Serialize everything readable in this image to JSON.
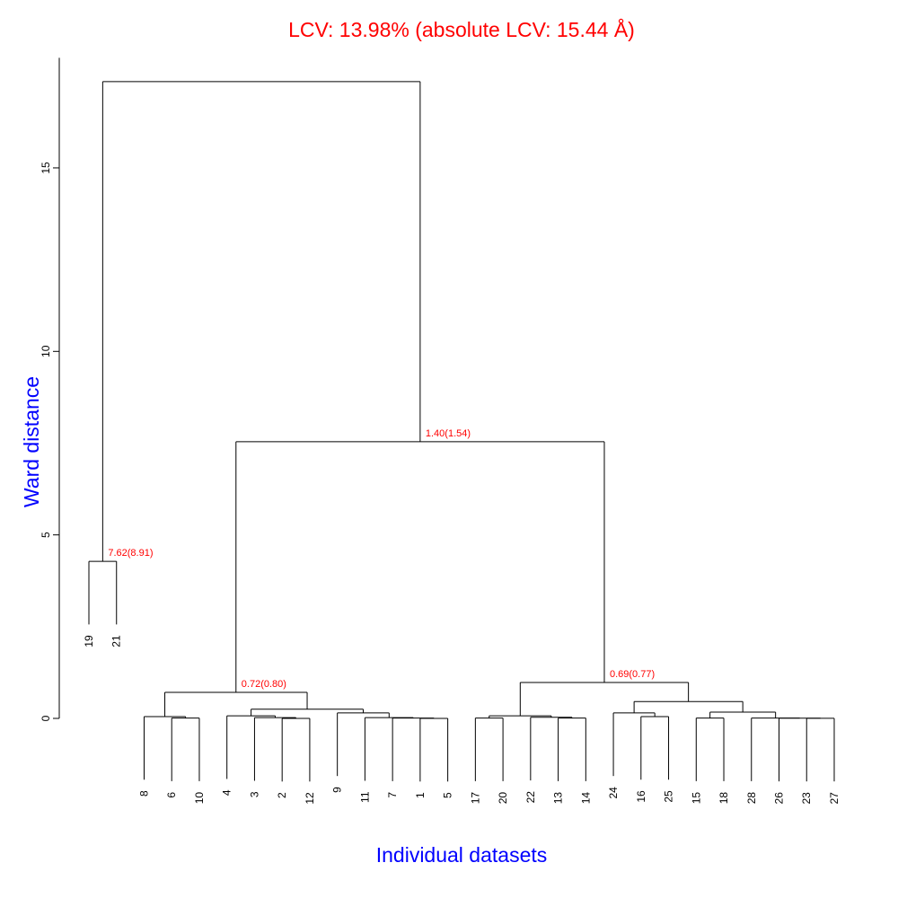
{
  "chart_data": {
    "type": "dendrogram",
    "title": "LCV: 13.98% (absolute LCV: 15.44 Å)",
    "xlabel": "Individual datasets",
    "ylabel": "Ward distance",
    "yticks": [
      0,
      5,
      10,
      15
    ],
    "ylim": [
      0,
      18
    ],
    "colors": {
      "title": "#ff0000",
      "axis_labels": "#0000ff",
      "annotations": "#ff0000",
      "lines": "#000000"
    },
    "tree": {
      "h": 17.35,
      "children": [
        {
          "h": 4.28,
          "label": "7.62(8.91)",
          "children": [
            "19",
            "21"
          ]
        },
        {
          "h": 7.54,
          "label": "1.40(1.54)",
          "children": [
            {
              "h": 0.71,
              "label": "0.72(0.80)",
              "children": [
                {
                  "h": 0.05,
                  "children": [
                    "8",
                    {
                      "h": 0.01,
                      "children": [
                        "6",
                        "10"
                      ]
                    }
                  ]
                },
                {
                  "h": 0.25,
                  "children": [
                    {
                      "h": 0.07,
                      "children": [
                        "4",
                        {
                          "h": 0.02,
                          "children": [
                            "3",
                            {
                              "h": 0.0,
                              "children": [
                                "2",
                                "12"
                              ]
                            }
                          ]
                        }
                      ]
                    },
                    {
                      "h": 0.15,
                      "children": [
                        "9",
                        {
                          "h": 0.02,
                          "children": [
                            "11",
                            {
                              "h": 0.01,
                              "children": [
                                "7",
                                {
                                  "h": 0.0,
                                  "children": [
                                    "1",
                                    "5"
                                  ]
                                }
                              ]
                            }
                          ]
                        }
                      ]
                    }
                  ]
                }
              ]
            },
            {
              "h": 0.98,
              "label": "0.69(0.77)",
              "children": [
                {
                  "h": 0.07,
                  "children": [
                    {
                      "h": 0.01,
                      "children": [
                        "17",
                        "20"
                      ]
                    },
                    {
                      "h": 0.03,
                      "children": [
                        "22",
                        {
                          "h": 0.01,
                          "children": [
                            "13",
                            "14"
                          ]
                        }
                      ]
                    }
                  ]
                },
                {
                  "h": 0.46,
                  "children": [
                    {
                      "h": 0.15,
                      "children": [
                        "24",
                        {
                          "h": 0.05,
                          "children": [
                            "16",
                            "25"
                          ]
                        }
                      ]
                    },
                    {
                      "h": 0.17,
                      "children": [
                        {
                          "h": 0.01,
                          "children": [
                            "15",
                            "18"
                          ]
                        },
                        {
                          "h": 0.01,
                          "children": [
                            "28",
                            {
                              "h": 0.005,
                              "children": [
                                "26",
                                {
                                  "h": 0.003,
                                  "children": [
                                    "23",
                                    "27"
                                  ]
                                }
                              ]
                            }
                          ]
                        }
                      ]
                    }
                  ]
                }
              ]
            }
          ]
        }
      ]
    }
  }
}
